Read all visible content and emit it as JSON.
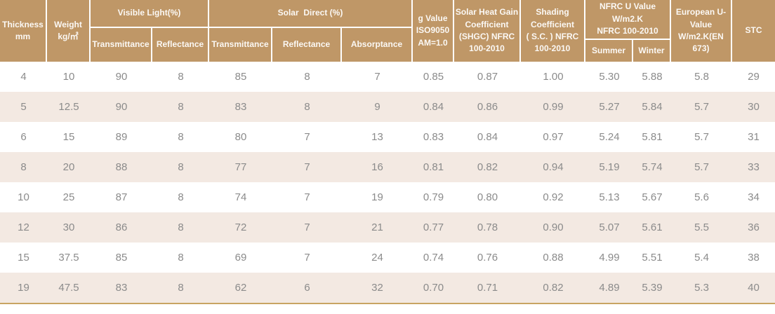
{
  "table": {
    "header": {
      "thickness": "Thickness\nmm",
      "weight": "Weight\nkg/㎡",
      "visible_light": "Visible Light(%)",
      "vl_transmittance": "Transmittance",
      "vl_reflectance": "Reflectance",
      "solar_direct": "Solar  Direct (%)",
      "sd_transmittance": "Transmittance",
      "sd_reflectance": "Reflectance",
      "sd_absorptance": "Absorptance",
      "g_value": "g Value\nISO9050\nAM=1.0",
      "shgc": "Solar Heat Gain\nCoefficient\n(SHGC) NFRC\n100-2010",
      "shading_coefficient": "Shading\nCoefficient\n( S.C. ) NFRC\n100-2010",
      "nfrc_u_value": "NFRC U Value\nW/m2.K\nNFRC 100-2010",
      "summer": "Summer",
      "winter": "Winter",
      "european_u_value": "European U-\nValue\nW/m2.K(EN\n673)",
      "stc": "STC"
    },
    "rows": [
      [
        "4",
        "10",
        "90",
        "8",
        "85",
        "8",
        "7",
        "0.85",
        "0.87",
        "1.00",
        "5.30",
        "5.88",
        "5.8",
        "29"
      ],
      [
        "5",
        "12.5",
        "90",
        "8",
        "83",
        "8",
        "9",
        "0.84",
        "0.86",
        "0.99",
        "5.27",
        "5.84",
        "5.7",
        "30"
      ],
      [
        "6",
        "15",
        "89",
        "8",
        "80",
        "7",
        "13",
        "0.83",
        "0.84",
        "0.97",
        "5.24",
        "5.81",
        "5.7",
        "31"
      ],
      [
        "8",
        "20",
        "88",
        "8",
        "77",
        "7",
        "16",
        "0.81",
        "0.82",
        "0.94",
        "5.19",
        "5.74",
        "5.7",
        "33"
      ],
      [
        "10",
        "25",
        "87",
        "8",
        "74",
        "7",
        "19",
        "0.79",
        "0.80",
        "0.92",
        "5.13",
        "5.67",
        "5.6",
        "34"
      ],
      [
        "12",
        "30",
        "86",
        "8",
        "72",
        "7",
        "21",
        "0.77",
        "0.78",
        "0.90",
        "5.07",
        "5.61",
        "5.5",
        "36"
      ],
      [
        "15",
        "37.5",
        "85",
        "8",
        "69",
        "7",
        "24",
        "0.74",
        "0.76",
        "0.88",
        "4.99",
        "5.51",
        "5.4",
        "38"
      ],
      [
        "19",
        "47.5",
        "83",
        "8",
        "62",
        "6",
        "32",
        "0.70",
        "0.71",
        "0.82",
        "4.89",
        "5.39",
        "5.3",
        "40"
      ]
    ],
    "colors": {
      "header_bg": "#bf9767",
      "header_text": "#fbf8f4",
      "stripe_bg": "#f3e9e2",
      "data_text": "#8b8b8b",
      "bottom_rule": "#c8a462"
    }
  }
}
